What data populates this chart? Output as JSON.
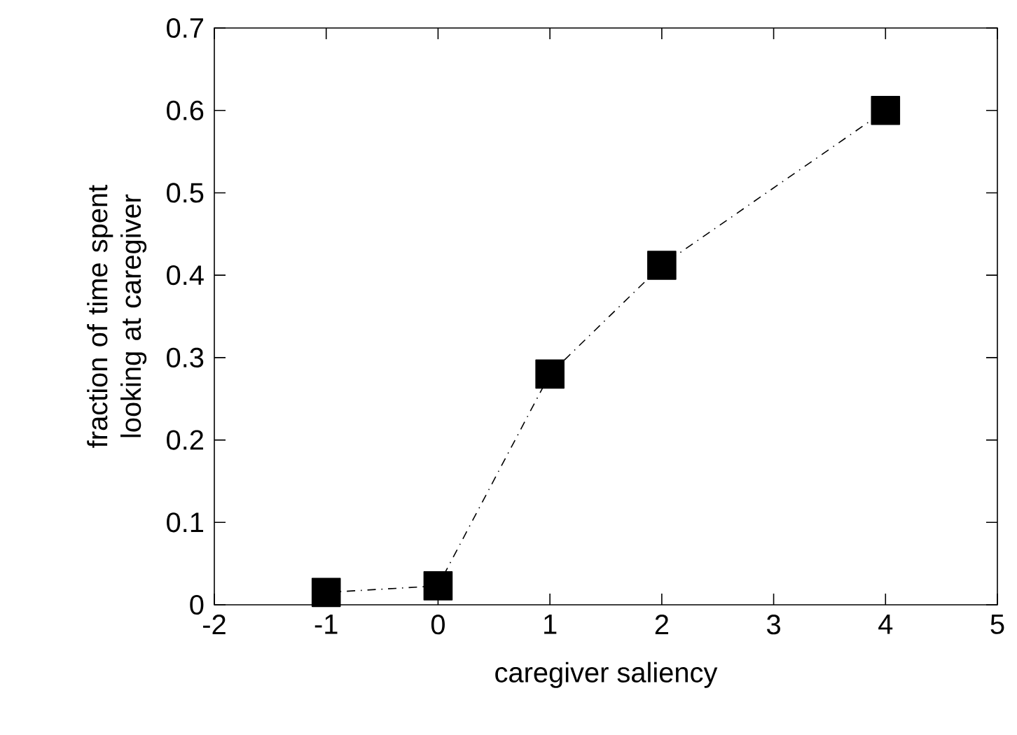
{
  "chart_data": {
    "type": "line",
    "xlabel": "caregiver saliency",
    "ylabel": "fraction of time spent looking at caregiver",
    "x": [
      -1,
      0,
      1,
      2,
      4
    ],
    "values": [
      0.015,
      0.023,
      0.28,
      0.412,
      0.6
    ],
    "color": "#000000",
    "marker": "square",
    "line_style": "dashdot",
    "grid": false,
    "xlim": [
      -2,
      5
    ],
    "xticks": [
      -2,
      -1,
      0,
      1,
      2,
      3,
      4,
      5
    ],
    "ylim": [
      0,
      0.7
    ],
    "yticks": [
      0,
      0.1,
      0.2,
      0.3,
      0.4,
      0.5,
      0.6,
      0.7
    ]
  }
}
